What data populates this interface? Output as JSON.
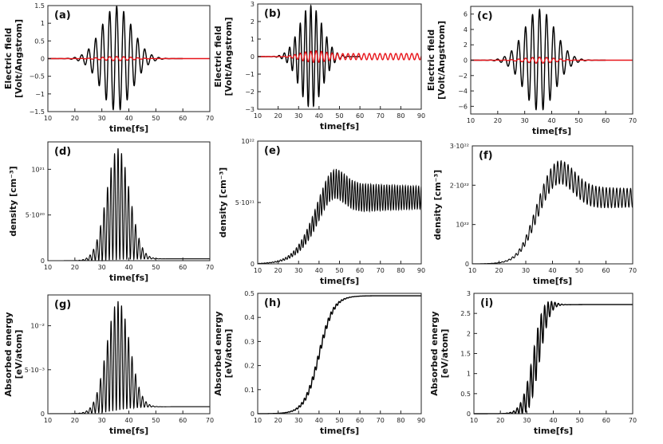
{
  "chart_data": [
    {
      "id": "a",
      "type": "line",
      "panel_label": "(a)",
      "xlabel": "time[fs]",
      "ylabel": [
        "Electric field",
        "[Volt/Angstrom]"
      ],
      "xlim": [
        10,
        70
      ],
      "ylim": [
        -1.5,
        1.5
      ],
      "xticks": [
        "10",
        "20",
        "30",
        "40",
        "50",
        "60",
        "70"
      ],
      "yticks": [
        {
          "v": 1.5,
          "t": "1.5"
        },
        {
          "v": 1,
          "t": "1"
        },
        {
          "v": 0.5,
          "t": "0.5"
        },
        {
          "v": 0,
          "t": "0"
        },
        {
          "v": -0.5,
          "t": "−0.5"
        },
        {
          "v": -1,
          "t": "−1"
        },
        {
          "v": -1.5,
          "t": "−1.5"
        }
      ],
      "series": [
        {
          "color": "#000000",
          "center": 35.5,
          "width": 8,
          "amp": 1.48,
          "period": 2.6,
          "end": 60
        },
        {
          "color": "#e8141a",
          "center": 35.5,
          "width": 8,
          "amp": 0.06,
          "period": 2.6,
          "end": 70
        }
      ]
    },
    {
      "id": "b",
      "type": "line",
      "panel_label": "(b)",
      "xlabel": "time[fs]",
      "ylabel": [
        "Electric field",
        "[Volt/Angstrom]"
      ],
      "xlim": [
        10,
        90
      ],
      "ylim": [
        -3,
        3
      ],
      "xticks": [
        "10",
        "20",
        "30",
        "40",
        "50",
        "60",
        "70",
        "80",
        "90"
      ],
      "yticks": [
        {
          "v": 3,
          "t": "3"
        },
        {
          "v": 2,
          "t": "2"
        },
        {
          "v": 1,
          "t": "1"
        },
        {
          "v": 0,
          "t": "0"
        },
        {
          "v": -1,
          "t": "−1"
        },
        {
          "v": -2,
          "t": "−2"
        },
        {
          "v": -3,
          "t": "−3"
        }
      ],
      "series": [
        {
          "color": "#000000",
          "center": 36,
          "width": 8,
          "amp": 2.9,
          "period": 2.6,
          "end": 60
        },
        {
          "color": "#e8141a",
          "center": 36,
          "width": 8,
          "amp": 0.3,
          "period": 2.6,
          "tail": 0.18,
          "end": 90
        }
      ]
    },
    {
      "id": "c",
      "type": "line",
      "panel_label": "(c)",
      "xlabel": "time[fs]",
      "ylabel": [
        "Electric field",
        "[Volt/Angstrom]"
      ],
      "xlim": [
        10,
        70
      ],
      "ylim": [
        -7,
        7
      ],
      "xticks": [
        "10",
        "20",
        "30",
        "40",
        "50",
        "60",
        "70"
      ],
      "yticks": [
        {
          "v": 6,
          "t": "6"
        },
        {
          "v": 4,
          "t": "4"
        },
        {
          "v": 2,
          "t": "2"
        },
        {
          "v": 0,
          "t": "0"
        },
        {
          "v": -2,
          "t": "−2"
        },
        {
          "v": -4,
          "t": "−4"
        },
        {
          "v": -6,
          "t": "−6"
        }
      ],
      "series": [
        {
          "color": "#000000",
          "center": 35.5,
          "width": 8,
          "amp": 6.6,
          "period": 2.6,
          "end": 60
        },
        {
          "color": "#e8141a",
          "center": 35.5,
          "width": 8,
          "amp": 0.4,
          "period": 2.6,
          "end": 70
        }
      ]
    },
    {
      "id": "d",
      "type": "line",
      "panel_label": "(d)",
      "xlabel": "time[fs]",
      "ylabel": [
        "density [cm⁻³]"
      ],
      "xlim": [
        10,
        70
      ],
      "ylim": [
        0,
        1.3e+21
      ],
      "xticks": [
        "10",
        "20",
        "30",
        "40",
        "50",
        "60",
        "70"
      ],
      "yticks": [
        {
          "v": 0,
          "t": "0"
        },
        {
          "v": 5e+20,
          "t": "5·10²⁰"
        },
        {
          "v": 1e+21,
          "t": "10²¹"
        }
      ],
      "series": [
        {
          "color": "#000000",
          "kind": "density-pulse",
          "center": 36,
          "width": 6,
          "amp": 1.22e+21,
          "period": 1.3,
          "base": 2e+19
        }
      ]
    },
    {
      "id": "e",
      "type": "line",
      "panel_label": "(e)",
      "xlabel": "time[fs]",
      "ylabel": [
        "density [cm⁻³]"
      ],
      "xlim": [
        10,
        90
      ],
      "ylim": [
        0,
        1e+22
      ],
      "xticks": [
        "10",
        "20",
        "30",
        "40",
        "50",
        "60",
        "70",
        "80",
        "90"
      ],
      "yticks": [
        {
          "v": 0,
          "t": "0"
        },
        {
          "v": 5e+21,
          "t": "5·10²¹"
        },
        {
          "v": 1e+22,
          "t": "10²²"
        }
      ],
      "series": [
        {
          "color": "#000000",
          "kind": "density-rise",
          "mid": 36,
          "rise": 5,
          "plateau": 5.4e+21,
          "peak": 7.2e+21,
          "osc": 1.3e+21,
          "period": 1.3
        }
      ]
    },
    {
      "id": "f",
      "type": "line",
      "panel_label": "(f)",
      "xlabel": "time[fs]",
      "ylabel": [
        "density [cm⁻³]"
      ],
      "xlim": [
        10,
        70
      ],
      "ylim": [
        0,
        3e+22
      ],
      "xticks": [
        "10",
        "20",
        "30",
        "40",
        "50",
        "60",
        "70"
      ],
      "yticks": [
        {
          "v": 0,
          "t": "0"
        },
        {
          "v": 1e+22,
          "t": "10²²"
        },
        {
          "v": 2e+22,
          "t": "2·10²²"
        },
        {
          "v": 3e+22,
          "t": "3·10²²"
        }
      ],
      "series": [
        {
          "color": "#000000",
          "kind": "density-rise",
          "mid": 32,
          "rise": 3,
          "plateau": 1.68e+22,
          "peak": 2.4e+22,
          "osc": 3e+21,
          "period": 1.3
        }
      ]
    },
    {
      "id": "g",
      "type": "line",
      "panel_label": "(g)",
      "xlabel": "time[fs]",
      "ylabel": [
        "Absorbed energy",
        "[eV/atom]"
      ],
      "xlim": [
        10,
        70
      ],
      "ylim": [
        0,
        0.0135
      ],
      "xticks": [
        "10",
        "20",
        "30",
        "40",
        "50",
        "60",
        "70"
      ],
      "yticks": [
        {
          "v": 0,
          "t": "0"
        },
        {
          "v": 0.005,
          "t": "5·10⁻³"
        },
        {
          "v": 0.01,
          "t": "10⁻²"
        }
      ],
      "series": [
        {
          "color": "#000000",
          "kind": "density-pulse",
          "center": 36,
          "width": 6,
          "amp": 0.0124,
          "period": 1.3,
          "base": 0.0008
        }
      ]
    },
    {
      "id": "h",
      "type": "line",
      "panel_label": "(h)",
      "xlabel": "time[fs]",
      "ylabel": [
        "Absorbed energy",
        "[eV/atom]"
      ],
      "xlim": [
        10,
        90
      ],
      "ylim": [
        0,
        0.5
      ],
      "xticks": [
        "10",
        "20",
        "30",
        "40",
        "50",
        "60",
        "70",
        "80",
        "90"
      ],
      "yticks": [
        {
          "v": 0,
          "t": "0"
        },
        {
          "v": 0.1,
          "t": "0.1"
        },
        {
          "v": 0.2,
          "t": "0.2"
        },
        {
          "v": 0.3,
          "t": "0.3"
        },
        {
          "v": 0.4,
          "t": "0.4"
        },
        {
          "v": 0.5,
          "t": "0.5"
        }
      ],
      "series": [
        {
          "color": "#000000",
          "kind": "sigmoid",
          "mid": 40,
          "rise": 3.5,
          "top": 0.49,
          "ripple": 0.008,
          "period": 1.3
        }
      ]
    },
    {
      "id": "i",
      "type": "line",
      "panel_label": "(i)",
      "xlabel": "time[fs]",
      "ylabel": [
        "Absorbed energy",
        "[eV/atom]"
      ],
      "xlim": [
        10,
        70
      ],
      "ylim": [
        0,
        3
      ],
      "xticks": [
        "10",
        "20",
        "30",
        "40",
        "50",
        "60",
        "70"
      ],
      "yticks": [
        {
          "v": 0,
          "t": "0"
        },
        {
          "v": 0.5,
          "t": "0.5"
        },
        {
          "v": 1,
          "t": "1"
        },
        {
          "v": 1.5,
          "t": "1.5"
        },
        {
          "v": 2,
          "t": "2"
        },
        {
          "v": 2.5,
          "t": "2.5"
        },
        {
          "v": 3,
          "t": "3"
        }
      ],
      "series": [
        {
          "color": "#000000",
          "kind": "sigmoid",
          "mid": 33.5,
          "rise": 2,
          "top": 2.72,
          "ripple": 0.05,
          "period": 1.3,
          "overshoot": 0.08
        }
      ]
    }
  ]
}
